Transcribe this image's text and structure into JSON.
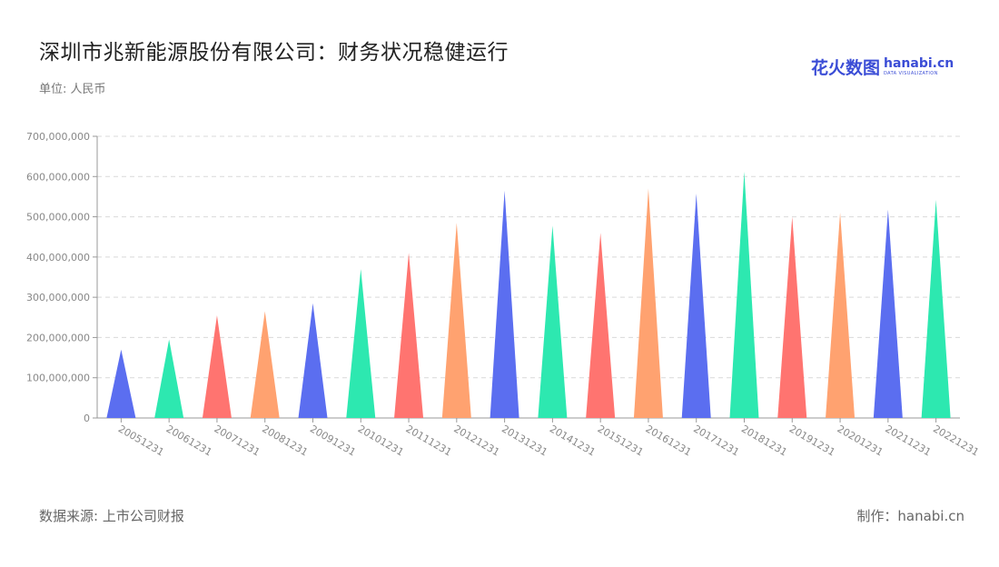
{
  "header": {
    "title": "深圳市兆新能源股份有限公司：财务状况稳健运行",
    "unit": "单位: 人民币"
  },
  "logo": {
    "cn": "花火数图",
    "en": "hanabi.cn",
    "sub": "DATA VISUALIZATION",
    "color": "#3b4dd6"
  },
  "footer": {
    "source": "数据来源: 上市公司财报",
    "credit": "制作：hanabi.cn"
  },
  "palette": [
    "#5b6ef0",
    "#2de8b0",
    "#ff7470",
    "#ffa270"
  ],
  "chart_data": {
    "type": "bar",
    "bar_shape": "triangle",
    "categories": [
      "20051231",
      "20061231",
      "20071231",
      "20081231",
      "20091231",
      "20101231",
      "20111231",
      "20121231",
      "20131231",
      "20141231",
      "20151231",
      "20161231",
      "20171231",
      "20181231",
      "20191231",
      "20201231",
      "20211231",
      "20221231"
    ],
    "values": [
      170000000,
      195000000,
      255000000,
      265000000,
      285000000,
      370000000,
      410000000,
      485000000,
      565000000,
      478000000,
      460000000,
      570000000,
      558000000,
      612000000,
      500000000,
      510000000,
      518000000,
      542000000
    ],
    "ylim": [
      0,
      700000000
    ],
    "yticks": [
      0,
      100000000,
      200000000,
      300000000,
      400000000,
      500000000,
      600000000,
      700000000
    ],
    "ytick_labels": [
      "0",
      "100,000,000",
      "200,000,000",
      "300,000,000",
      "400,000,000",
      "500,000,000",
      "600,000,000",
      "700,000,000"
    ],
    "grid": true,
    "legend": "none"
  }
}
